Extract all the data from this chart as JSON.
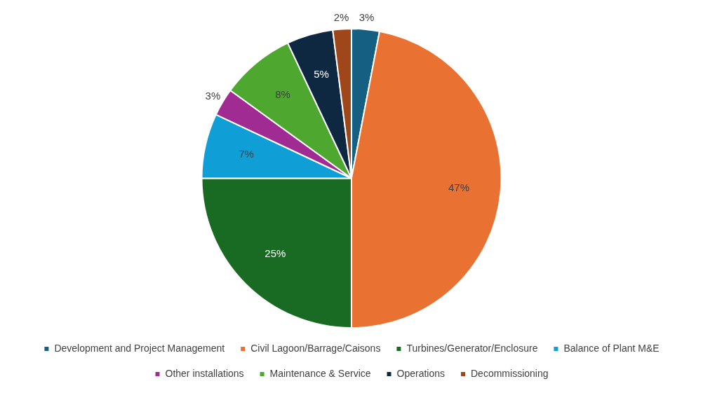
{
  "chart_data": {
    "type": "pie",
    "categories": [
      "Development and Project Management",
      "Civil Lagoon/Barrage/Caisons",
      "Turbines/Generator/Enclosure",
      "Balance of Plant M&E",
      "Other installations",
      "Maintenance & Service",
      "Operations",
      "Decommissioning"
    ],
    "values": [
      3,
      47,
      25,
      7,
      3,
      8,
      5,
      2
    ],
    "colors": [
      "#156082",
      "#e97132",
      "#196b24",
      "#0f9ed5",
      "#a02b93",
      "#4ea72e",
      "#0e2841",
      "#a0461b"
    ],
    "value_labels": [
      "3%",
      "47%",
      "25%",
      "7%",
      "3%",
      "8%",
      "5%",
      "2%"
    ],
    "legend": "bottom"
  }
}
